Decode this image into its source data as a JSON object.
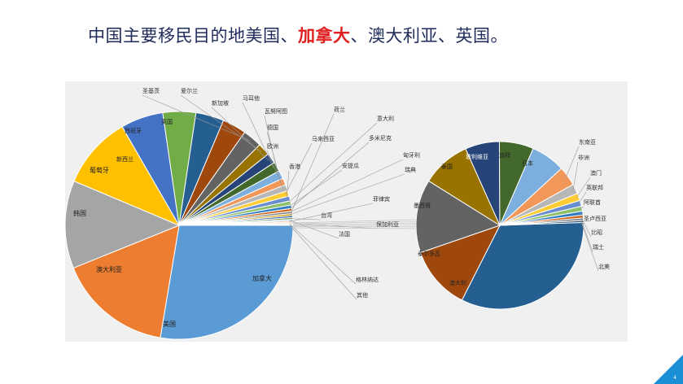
{
  "title": {
    "part1": "中国主要移民目的地美国、",
    "highlight": "加拿大",
    "part2": "、澳大利亚、英国。"
  },
  "page_number": "4",
  "colors": {
    "title": "#1f2b5a",
    "highlight": "#e02020",
    "panel": "#f0f0f0",
    "corner": "#1a8fd6"
  },
  "chart_data": [
    {
      "type": "pie",
      "title": "",
      "slices": [
        {
          "label": "加拿大",
          "value": 28.4,
          "color": "#5b9bd5"
        },
        {
          "label": "美国",
          "value": 16.7,
          "color": "#ed7d31"
        },
        {
          "label": "澳大利亚",
          "value": 12.8,
          "color": "#a5a5a5"
        },
        {
          "label": "韩国",
          "value": 10.6,
          "color": "#ffc000"
        },
        {
          "label": "葡萄牙",
          "value": 6.2,
          "color": "#4472c4"
        },
        {
          "label": "新西兰",
          "value": 4.8,
          "color": "#70ad47"
        },
        {
          "label": "西班牙",
          "value": 4.1,
          "color": "#255e91"
        },
        {
          "label": "英国",
          "value": 3.5,
          "color": "#9e480e"
        },
        {
          "label": "圣基茨",
          "value": 2.8,
          "color": "#636363"
        },
        {
          "label": "爱尔兰",
          "value": 1.8,
          "color": "#997300"
        },
        {
          "label": "新加坡",
          "value": 1.5,
          "color": "#264478"
        },
        {
          "label": "马耳他",
          "value": 1.4,
          "color": "#43682b"
        },
        {
          "label": "瓦努阿图",
          "value": 1.2,
          "color": "#7cafdd"
        },
        {
          "label": "德国",
          "value": 1.0,
          "color": "#f1975a"
        },
        {
          "label": "欧洲",
          "value": 0.9,
          "color": "#b7b7b7"
        },
        {
          "label": "马来西亚",
          "value": 0.8,
          "color": "#ffcd33"
        },
        {
          "label": "香港",
          "value": 0.7,
          "color": "#698ed0"
        },
        {
          "label": "意大利",
          "value": 0.6,
          "color": "#8cc168"
        },
        {
          "label": "安提瓜",
          "value": 0.5,
          "color": "#327dc2"
        },
        {
          "label": "多米尼克",
          "value": 0.4,
          "color": "#d26012"
        },
        {
          "label": "匈牙利",
          "value": 0.35,
          "color": "#848484"
        },
        {
          "label": "瑞典",
          "value": 0.3,
          "color": "#cc9a00"
        },
        {
          "label": "荷兰",
          "value": 0.28,
          "color": "#335aa1"
        },
        {
          "label": "台湾",
          "value": 0.25,
          "color": "#5a8a39"
        },
        {
          "label": "法国",
          "value": 0.22,
          "color": "#9dc3e6"
        },
        {
          "label": "菲律宾",
          "value": 0.2,
          "color": "#f4b183"
        },
        {
          "label": "保加利亚",
          "value": 0.18,
          "color": "#c9c9c9"
        },
        {
          "label": "格林纳达",
          "value": 0.15,
          "color": "#ffd966"
        },
        {
          "label": "其他",
          "value": 0.12,
          "color": "#1f4e79"
        }
      ]
    },
    {
      "type": "pie",
      "title": "",
      "slices": [
        {
          "label": "澳大利",
          "value": 35,
          "color": "#255e91"
        },
        {
          "label": "泰尔多瓦",
          "value": 13,
          "color": "#9e480e"
        },
        {
          "label": "墨西哥",
          "value": 15,
          "color": "#636363"
        },
        {
          "label": "泰国",
          "value": 10,
          "color": "#997300"
        },
        {
          "label": "玻利维亚",
          "value": 7,
          "color": "#264478"
        },
        {
          "label": "迪拜",
          "value": 7,
          "color": "#43682b"
        },
        {
          "label": "日本",
          "value": 7,
          "color": "#7cafdd"
        },
        {
          "label": "东南亚",
          "value": 4,
          "color": "#f1975a"
        },
        {
          "label": "非洲",
          "value": 2,
          "color": "#b7b7b7"
        },
        {
          "label": "澳门",
          "value": 1.5,
          "color": "#ffcd33"
        },
        {
          "label": "英联邦",
          "value": 1.2,
          "color": "#698ed0"
        },
        {
          "label": "阿联酋",
          "value": 1,
          "color": "#8cc168"
        },
        {
          "label": "圣卢西亚",
          "value": 0.8,
          "color": "#327dc2"
        },
        {
          "label": "比昭",
          "value": 0.6,
          "color": "#d26012"
        },
        {
          "label": "瑞士",
          "value": 0.5,
          "color": "#848484"
        },
        {
          "label": "北美",
          "value": 0.4,
          "color": "#1f4e79"
        }
      ]
    }
  ]
}
